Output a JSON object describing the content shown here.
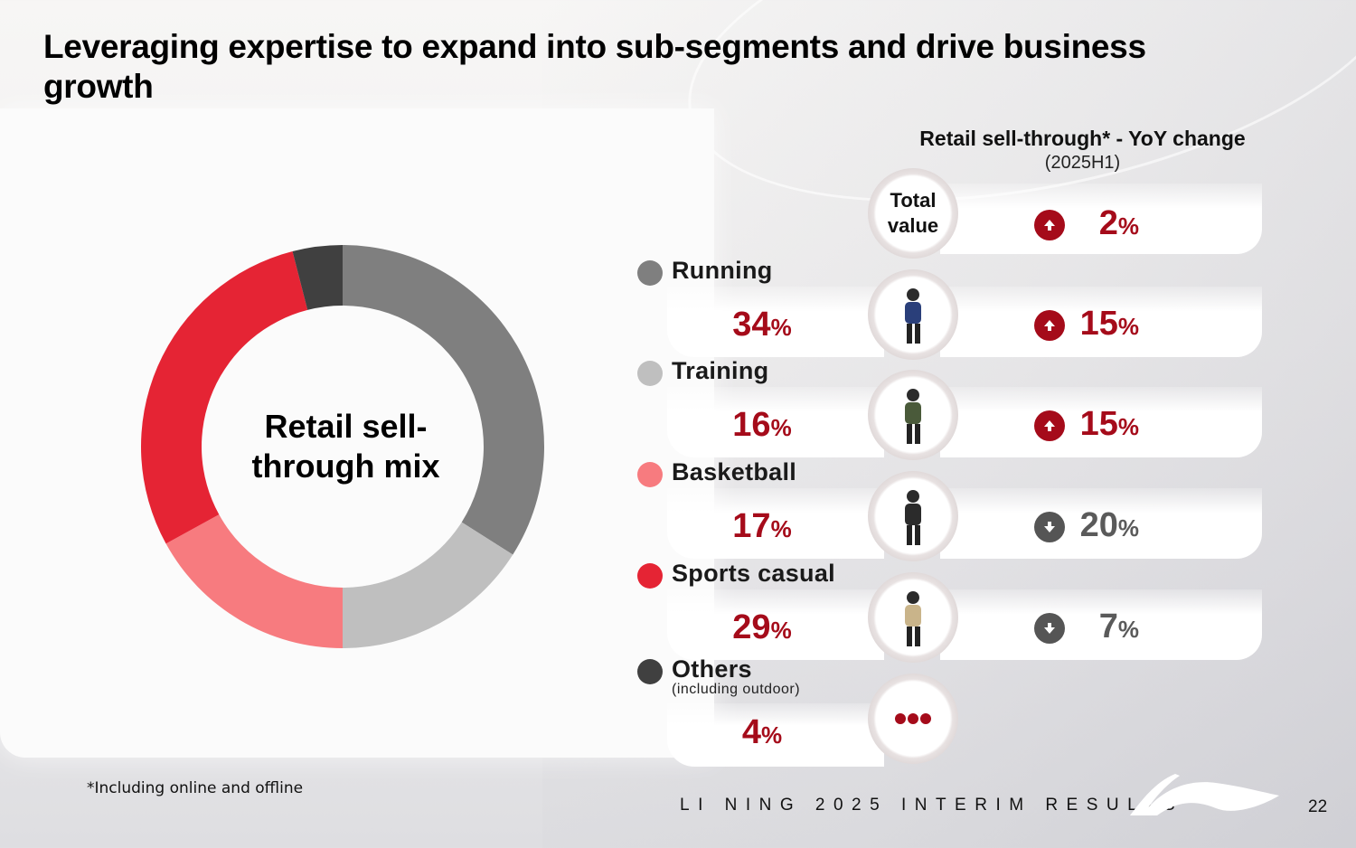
{
  "slide": {
    "title": "Leveraging expertise to expand into sub-segments and drive business growth",
    "footnote": "*Including online and offline",
    "footer_brand": "LI NING 2025 INTERIM RESULTS",
    "page_number": "22"
  },
  "donut_center_label": "Retail sell-through mix",
  "yoy_header": {
    "title": "Retail sell-through* - YoY change",
    "period": "(2025H1)"
  },
  "total": {
    "label_line1": "Total",
    "label_line2": "value",
    "direction": "up",
    "value": "2",
    "unit": "%"
  },
  "colors": {
    "accent_red": "#a50b1a",
    "up_icon": "#a50b1a",
    "down_icon": "#555555",
    "down_text": "#5a5a5a"
  },
  "segments": [
    {
      "name": "Running",
      "sub": "",
      "mix": "34",
      "unit": "%",
      "yoy": "15",
      "direction": "up",
      "color": "#7f7f7f",
      "photo": "runner-photo"
    },
    {
      "name": "Training",
      "sub": "",
      "mix": "16",
      "unit": "%",
      "yoy": "15",
      "direction": "up",
      "color": "#bfbfbf",
      "photo": "training-photo"
    },
    {
      "name": "Basketball",
      "sub": "",
      "mix": "17",
      "unit": "%",
      "yoy": "20",
      "direction": "down",
      "color": "#f77b7f",
      "photo": "basketball-photo"
    },
    {
      "name": "Sports casual",
      "sub": "",
      "mix": "29",
      "unit": "%",
      "yoy": "7",
      "direction": "down",
      "color": "#e52434",
      "photo": "sports-casual-photo"
    },
    {
      "name": "Others",
      "sub": "(including outdoor)",
      "mix": "4",
      "unit": "%",
      "yoy": "",
      "direction": "",
      "color": "#404040",
      "photo": "more-dots"
    }
  ],
  "chart_data": {
    "type": "pie",
    "subtype": "donut",
    "title": "Retail sell-through mix",
    "categories": [
      "Running",
      "Training",
      "Basketball",
      "Sports casual",
      "Others"
    ],
    "values": [
      34,
      16,
      17,
      29,
      4
    ],
    "unit": "%",
    "colors": [
      "#7f7f7f",
      "#bfbfbf",
      "#f77b7f",
      "#e52434",
      "#404040"
    ],
    "start": "top",
    "direction": "clockwise",
    "legend": "right",
    "secondary_table": {
      "title": "Retail sell-through* - YoY change (2025H1)",
      "rows": [
        {
          "category": "Total value",
          "yoy_change_pct": 2
        },
        {
          "category": "Running",
          "yoy_change_pct": 15
        },
        {
          "category": "Training",
          "yoy_change_pct": 15
        },
        {
          "category": "Basketball",
          "yoy_change_pct": -20
        },
        {
          "category": "Sports casual",
          "yoy_change_pct": -7
        }
      ]
    }
  }
}
